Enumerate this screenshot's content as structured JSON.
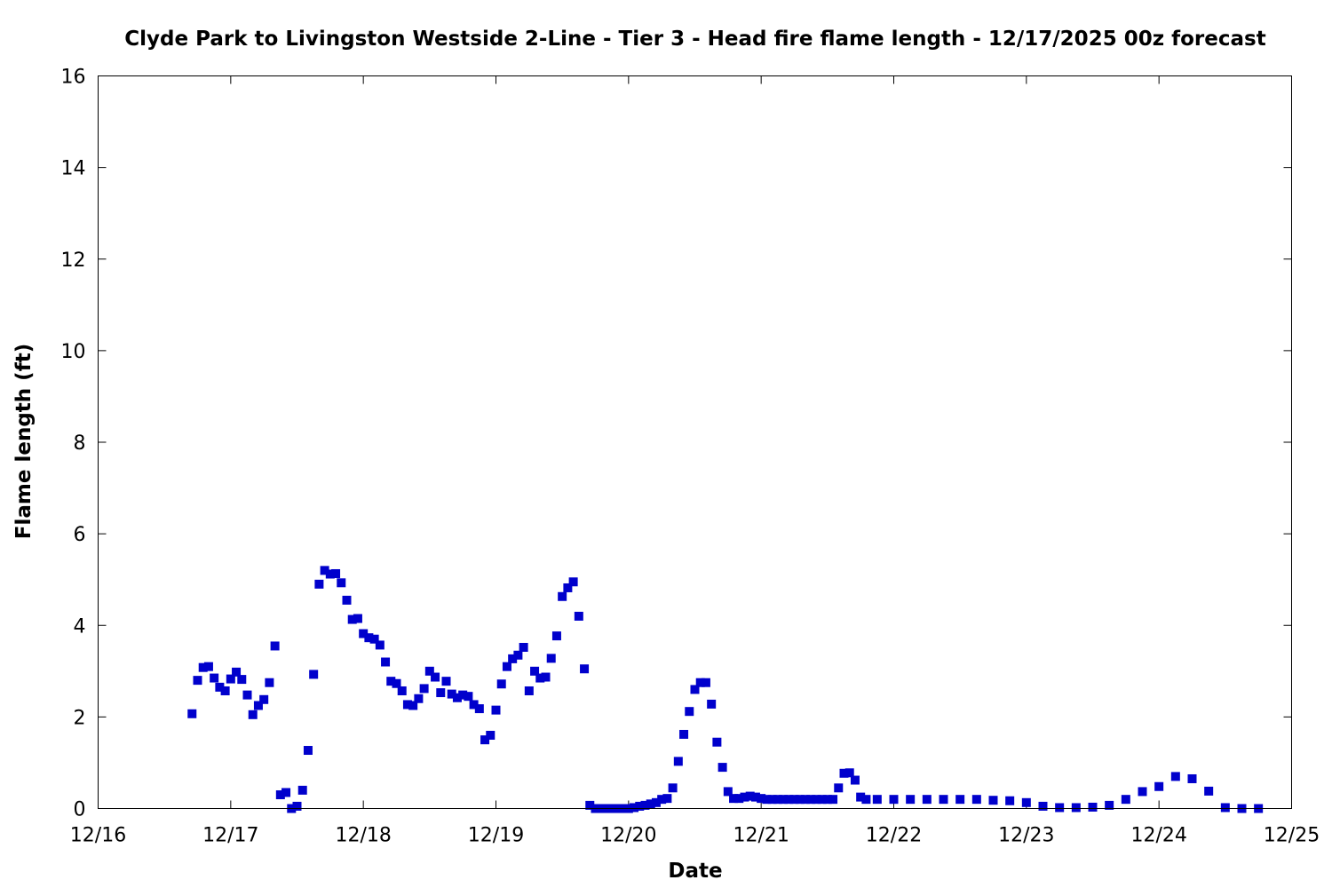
{
  "chart_data": {
    "type": "scatter",
    "title": "Clyde Park to Livingston Westside 2-Line - Tier 3 - Head fire flame length - 12/17/2025 00z forecast",
    "xlabel": "Date",
    "ylabel": "Flame length (ft)",
    "xlim": [
      "12/16 00:00",
      "12/25 00:00"
    ],
    "ylim": [
      0,
      16
    ],
    "x_ticks": [
      "12/16",
      "12/17",
      "12/18",
      "12/19",
      "12/20",
      "12/21",
      "12/22",
      "12/23",
      "12/24",
      "12/25"
    ],
    "y_ticks": [
      "0",
      "2",
      "4",
      "6",
      "8",
      "10",
      "12",
      "14",
      "16"
    ],
    "grid": false,
    "legend": false,
    "marker_color": "#0000cc",
    "series": [
      {
        "points": [
          [
            "12/16 17:00",
            2.07
          ],
          [
            "12/16 18:00",
            2.8
          ],
          [
            "12/16 19:00",
            3.08
          ],
          [
            "12/16 20:00",
            3.1
          ],
          [
            "12/16 21:00",
            2.85
          ],
          [
            "12/16 22:00",
            2.65
          ],
          [
            "12/16 23:00",
            2.57
          ],
          [
            "12/17 00:00",
            2.83
          ],
          [
            "12/17 01:00",
            2.98
          ],
          [
            "12/17 02:00",
            2.82
          ],
          [
            "12/17 03:00",
            2.48
          ],
          [
            "12/17 04:00",
            2.05
          ],
          [
            "12/17 05:00",
            2.25
          ],
          [
            "12/17 06:00",
            2.38
          ],
          [
            "12/17 07:00",
            2.75
          ],
          [
            "12/17 08:00",
            3.55
          ],
          [
            "12/17 09:00",
            0.3
          ],
          [
            "12/17 10:00",
            0.35
          ],
          [
            "12/17 11:00",
            0.0
          ],
          [
            "12/17 12:00",
            0.05
          ],
          [
            "12/17 13:00",
            0.4
          ],
          [
            "12/17 14:00",
            1.27
          ],
          [
            "12/17 15:00",
            2.93
          ],
          [
            "12/17 16:00",
            4.9
          ],
          [
            "12/17 17:00",
            5.2
          ],
          [
            "12/17 18:00",
            5.12
          ],
          [
            "12/17 19:00",
            5.13
          ],
          [
            "12/17 20:00",
            4.93
          ],
          [
            "12/17 21:00",
            4.55
          ],
          [
            "12/17 22:00",
            4.13
          ],
          [
            "12/17 23:00",
            4.15
          ],
          [
            "12/18 00:00",
            3.82
          ],
          [
            "12/18 01:00",
            3.73
          ],
          [
            "12/18 02:00",
            3.7
          ],
          [
            "12/18 03:00",
            3.57
          ],
          [
            "12/18 04:00",
            3.2
          ],
          [
            "12/18 05:00",
            2.78
          ],
          [
            "12/18 06:00",
            2.73
          ],
          [
            "12/18 07:00",
            2.57
          ],
          [
            "12/18 08:00",
            2.27
          ],
          [
            "12/18 09:00",
            2.25
          ],
          [
            "12/18 10:00",
            2.4
          ],
          [
            "12/18 11:00",
            2.62
          ],
          [
            "12/18 12:00",
            3.0
          ],
          [
            "12/18 13:00",
            2.87
          ],
          [
            "12/18 14:00",
            2.53
          ],
          [
            "12/18 15:00",
            2.78
          ],
          [
            "12/18 16:00",
            2.5
          ],
          [
            "12/18 17:00",
            2.42
          ],
          [
            "12/18 18:00",
            2.48
          ],
          [
            "12/18 19:00",
            2.45
          ],
          [
            "12/18 20:00",
            2.27
          ],
          [
            "12/18 21:00",
            2.18
          ],
          [
            "12/18 22:00",
            1.5
          ],
          [
            "12/18 23:00",
            1.6
          ],
          [
            "12/19 00:00",
            2.15
          ],
          [
            "12/19 01:00",
            2.72
          ],
          [
            "12/19 02:00",
            3.1
          ],
          [
            "12/19 03:00",
            3.27
          ],
          [
            "12/19 04:00",
            3.35
          ],
          [
            "12/19 05:00",
            3.52
          ],
          [
            "12/19 06:00",
            2.57
          ],
          [
            "12/19 07:00",
            3.0
          ],
          [
            "12/19 08:00",
            2.85
          ],
          [
            "12/19 09:00",
            2.87
          ],
          [
            "12/19 10:00",
            3.28
          ],
          [
            "12/19 11:00",
            3.77
          ],
          [
            "12/19 12:00",
            4.63
          ],
          [
            "12/19 13:00",
            4.82
          ],
          [
            "12/19 14:00",
            4.95
          ],
          [
            "12/19 15:00",
            4.2
          ],
          [
            "12/19 16:00",
            3.05
          ],
          [
            "12/19 17:00",
            0.07
          ],
          [
            "12/19 18:00",
            0.0
          ],
          [
            "12/19 19:00",
            0.0
          ],
          [
            "12/19 20:00",
            0.0
          ],
          [
            "12/19 21:00",
            0.0
          ],
          [
            "12/19 22:00",
            0.0
          ],
          [
            "12/19 23:00",
            0.0
          ],
          [
            "12/20 00:00",
            0.0
          ],
          [
            "12/20 01:00",
            0.02
          ],
          [
            "12/20 02:00",
            0.05
          ],
          [
            "12/20 03:00",
            0.07
          ],
          [
            "12/20 04:00",
            0.1
          ],
          [
            "12/20 05:00",
            0.13
          ],
          [
            "12/20 06:00",
            0.2
          ],
          [
            "12/20 07:00",
            0.22
          ],
          [
            "12/20 08:00",
            0.45
          ],
          [
            "12/20 09:00",
            1.03
          ],
          [
            "12/20 10:00",
            1.62
          ],
          [
            "12/20 11:00",
            2.12
          ],
          [
            "12/20 12:00",
            2.6
          ],
          [
            "12/20 13:00",
            2.75
          ],
          [
            "12/20 14:00",
            2.75
          ],
          [
            "12/20 15:00",
            2.28
          ],
          [
            "12/20 16:00",
            1.45
          ],
          [
            "12/20 17:00",
            0.9
          ],
          [
            "12/20 18:00",
            0.37
          ],
          [
            "12/20 19:00",
            0.22
          ],
          [
            "12/20 20:00",
            0.22
          ],
          [
            "12/20 21:00",
            0.25
          ],
          [
            "12/20 22:00",
            0.27
          ],
          [
            "12/20 23:00",
            0.25
          ],
          [
            "12/21 00:00",
            0.22
          ],
          [
            "12/21 01:00",
            0.2
          ],
          [
            "12/21 02:00",
            0.2
          ],
          [
            "12/21 03:00",
            0.2
          ],
          [
            "12/21 04:00",
            0.2
          ],
          [
            "12/21 05:00",
            0.2
          ],
          [
            "12/21 06:00",
            0.2
          ],
          [
            "12/21 07:00",
            0.2
          ],
          [
            "12/21 08:00",
            0.2
          ],
          [
            "12/21 09:00",
            0.2
          ],
          [
            "12/21 10:00",
            0.2
          ],
          [
            "12/21 11:00",
            0.2
          ],
          [
            "12/21 12:00",
            0.2
          ],
          [
            "12/21 13:00",
            0.2
          ],
          [
            "12/21 14:00",
            0.45
          ],
          [
            "12/21 15:00",
            0.77
          ],
          [
            "12/21 16:00",
            0.78
          ],
          [
            "12/21 17:00",
            0.62
          ],
          [
            "12/21 18:00",
            0.25
          ],
          [
            "12/21 19:00",
            0.2
          ],
          [
            "12/21 21:00",
            0.2
          ],
          [
            "12/22 00:00",
            0.2
          ],
          [
            "12/22 03:00",
            0.2
          ],
          [
            "12/22 06:00",
            0.2
          ],
          [
            "12/22 09:00",
            0.2
          ],
          [
            "12/22 12:00",
            0.2
          ],
          [
            "12/22 15:00",
            0.2
          ],
          [
            "12/22 18:00",
            0.18
          ],
          [
            "12/22 21:00",
            0.17
          ],
          [
            "12/23 00:00",
            0.13
          ],
          [
            "12/23 03:00",
            0.05
          ],
          [
            "12/23 06:00",
            0.02
          ],
          [
            "12/23 09:00",
            0.02
          ],
          [
            "12/23 12:00",
            0.03
          ],
          [
            "12/23 15:00",
            0.07
          ],
          [
            "12/23 18:00",
            0.2
          ],
          [
            "12/23 21:00",
            0.37
          ],
          [
            "12/24 00:00",
            0.48
          ],
          [
            "12/24 03:00",
            0.7
          ],
          [
            "12/24 06:00",
            0.65
          ],
          [
            "12/24 09:00",
            0.38
          ],
          [
            "12/24 12:00",
            0.02
          ],
          [
            "12/24 15:00",
            0.0
          ],
          [
            "12/24 18:00",
            0.0
          ]
        ]
      }
    ]
  }
}
